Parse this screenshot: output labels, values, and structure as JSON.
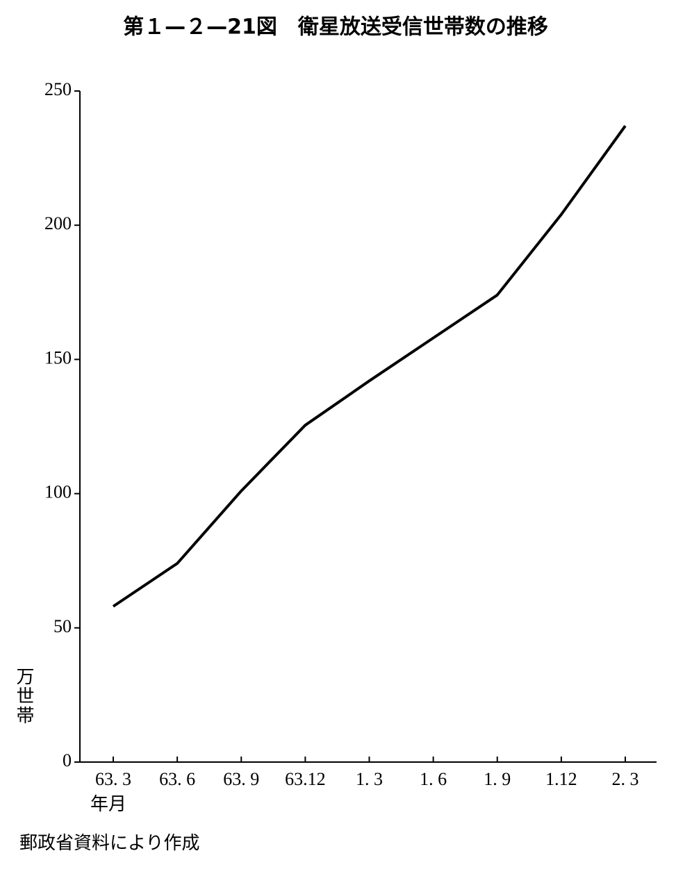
{
  "chart_data": {
    "type": "line",
    "title": "第１—２—21図　衛星放送受信世帯数の推移",
    "y_label": "万世帯",
    "x_label": "年月",
    "source": "郵政省資料により作成",
    "categories": [
      "63. 3",
      "63. 6",
      "63. 9",
      "63.12",
      "1. 3",
      "1. 6",
      "1. 9",
      "1.12",
      "2. 3"
    ],
    "values": [
      58,
      74,
      101,
      125.5,
      142,
      158,
      174,
      204,
      237
    ],
    "color": "#000000",
    "ylim": [
      0,
      250
    ],
    "yticks": [
      0,
      50,
      100,
      150,
      200,
      250
    ],
    "grid": false
  }
}
